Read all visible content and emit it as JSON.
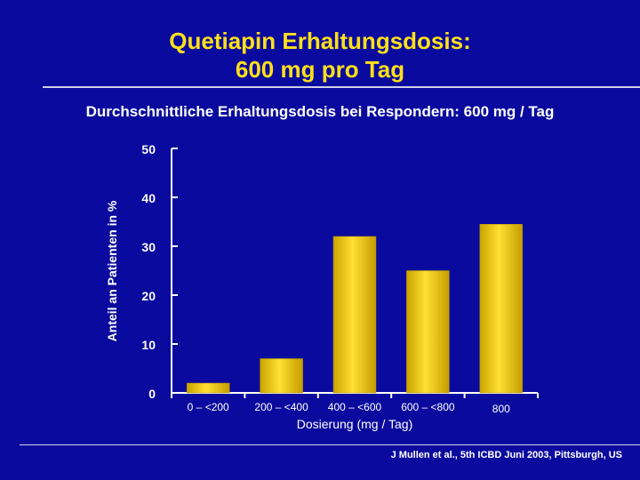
{
  "slide": {
    "title_line1": "Quetiapin Erhaltungsdosis:",
    "title_line2": "600 mg pro Tag",
    "subtitle": "Durchschnittliche Erhaltungsdosis bei Respondern: 600 mg / Tag",
    "citation": "J Mullen et al., 5th ICBD Juni 2003, Pittsburgh, US"
  },
  "colors": {
    "background": "#0a0a9e",
    "title": "#ffe01a",
    "bar": "#f0c800",
    "text": "#ffffff"
  },
  "chart_data": {
    "type": "bar",
    "categories": [
      "0 – <200",
      "200 – <400",
      "400 – <600",
      "600 – <800",
      "800"
    ],
    "values": [
      2,
      7,
      32,
      25,
      34.5
    ],
    "ylabel": "Anteil an Patienten in %",
    "xlabel": "Dosierung (mg / Tag)",
    "ylim": [
      0,
      50
    ],
    "yticks": [
      0,
      10,
      20,
      30,
      40,
      50
    ],
    "grid": false,
    "legend": "none"
  }
}
